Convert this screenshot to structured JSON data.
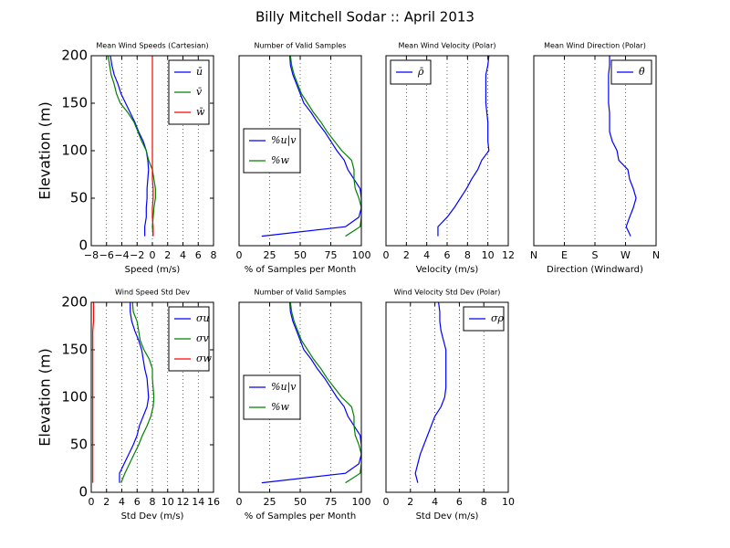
{
  "title": "Billy Mitchell Sodar :: April 2013",
  "chart_data": [
    {
      "type": "line",
      "title": "Mean Wind Speeds (Cartesian)",
      "xlabel": "Speed (m/s)",
      "ylabel": "Elevation (m)",
      "xlim": [
        -8,
        8
      ],
      "xticks": [
        {
          "value": -8,
          "label": "−8"
        },
        {
          "value": -6,
          "label": "−6"
        },
        {
          "value": -4,
          "label": "−4"
        },
        {
          "value": -2,
          "label": "−2"
        },
        0,
        2,
        4,
        6,
        8
      ],
      "ylim": [
        0,
        200
      ],
      "yticks": [
        0,
        50,
        100,
        150,
        200
      ],
      "grid": true,
      "legend": "upper right",
      "y": [
        10,
        20,
        30,
        40,
        50,
        60,
        70,
        80,
        90,
        100,
        110,
        120,
        130,
        140,
        150,
        160,
        170,
        180,
        190,
        200
      ],
      "series": [
        {
          "name": "ū",
          "color": "#0000ff",
          "values": [
            -1.0,
            -1.0,
            -0.8,
            -0.8,
            -0.7,
            -0.7,
            -0.6,
            -0.5,
            -0.6,
            -0.8,
            -1.2,
            -1.8,
            -2.3,
            -2.9,
            -3.5,
            -4.1,
            -4.5,
            -5.0,
            -5.3,
            -5.5
          ]
        },
        {
          "name": "v̄",
          "color": "#008000",
          "values": [
            0.1,
            0,
            0.1,
            0.2,
            0.4,
            0.4,
            0.2,
            0,
            -0.5,
            -0.8,
            -1.4,
            -1.9,
            -2.4,
            -3.2,
            -4.2,
            -4.7,
            -5.0,
            -5.4,
            -5.6,
            -5.8
          ]
        },
        {
          "name": "w̄",
          "color": "#ff0000",
          "values": [
            0.1,
            0.1,
            0,
            0,
            0.1,
            0.1,
            0,
            0,
            0,
            0,
            0,
            0,
            0,
            0,
            0,
            0,
            0,
            0,
            0,
            0
          ]
        }
      ]
    },
    {
      "type": "line",
      "title": "Number of Valid Samples",
      "xlabel": "% of Samples per Month",
      "xlim": [
        0,
        100
      ],
      "xticks": [
        0,
        25,
        50,
        75,
        100
      ],
      "ylim": [
        0,
        200
      ],
      "grid": true,
      "legend": "center left",
      "y": [
        10,
        20,
        30,
        40,
        50,
        60,
        70,
        80,
        90,
        100,
        110,
        120,
        130,
        140,
        150,
        160,
        170,
        180,
        190,
        200
      ],
      "series": [
        {
          "name": "%u|v",
          "color": "#0000ff",
          "values": [
            18.5,
            87,
            98,
            100,
            100,
            99,
            94,
            89,
            86,
            80,
            75,
            70,
            64,
            59,
            53,
            50,
            47,
            44,
            42,
            41.5
          ]
        },
        {
          "name": "%w",
          "color": "#008000",
          "values": [
            87,
            99,
            100,
            100,
            98,
            95,
            94,
            94,
            92,
            84,
            78,
            72,
            67,
            61,
            56,
            51,
            48,
            45,
            43,
            42
          ]
        }
      ]
    },
    {
      "type": "line",
      "title": "Mean Wind Velocity (Polar)",
      "xlabel": "Velocity (m/s)",
      "xlim": [
        0,
        12
      ],
      "xticks": [
        0,
        2,
        4,
        6,
        8,
        10,
        12
      ],
      "ylim": [
        0,
        200
      ],
      "grid": true,
      "legend": "upper left",
      "y": [
        10,
        20,
        30,
        40,
        50,
        60,
        70,
        80,
        90,
        100,
        110,
        120,
        130,
        140,
        150,
        160,
        170,
        180,
        190,
        200
      ],
      "series": [
        {
          "name": "ρ̄",
          "color": "#0000ff",
          "values": [
            5.1,
            5.1,
            6.0,
            6.7,
            7.3,
            7.9,
            8.4,
            9.0,
            9.4,
            10.1,
            10.0,
            10.0,
            10.0,
            9.9,
            9.8,
            9.8,
            9.8,
            9.8,
            10.0,
            10.1
          ]
        }
      ]
    },
    {
      "type": "line",
      "title": "Mean Wind Direction (Polar)",
      "xlabel": "Direction (Windward)",
      "xlim": [
        0,
        360
      ],
      "xticks": [
        {
          "value": 0,
          "label": "N"
        },
        {
          "value": 90,
          "label": "E"
        },
        {
          "value": 180,
          "label": "S"
        },
        {
          "value": 270,
          "label": "W"
        },
        {
          "value": 360,
          "label": "N"
        }
      ],
      "ylim": [
        0,
        200
      ],
      "grid": true,
      "legend": "upper right",
      "y": [
        10,
        20,
        30,
        40,
        50,
        60,
        70,
        80,
        90,
        100,
        110,
        120,
        130,
        140,
        150,
        160,
        170,
        180,
        190,
        200
      ],
      "series": [
        {
          "name": "θ̄",
          "color": "#0000ff",
          "values": [
            285,
            272,
            282,
            293,
            301,
            293,
            282,
            277,
            250,
            245,
            231,
            223,
            223,
            223,
            220,
            220,
            220,
            220,
            223,
            223
          ]
        }
      ]
    },
    {
      "type": "line",
      "title": "Wind Speed Std Dev",
      "xlabel": "Std Dev (m/s)",
      "ylabel": "Elevation (m)",
      "xlim": [
        0,
        16
      ],
      "xticks": [
        0,
        2,
        4,
        6,
        8,
        10,
        12,
        14,
        16
      ],
      "ylim": [
        0,
        200
      ],
      "yticks": [
        0,
        50,
        100,
        150,
        200
      ],
      "grid": true,
      "legend": "upper right",
      "y": [
        10,
        20,
        30,
        40,
        50,
        60,
        70,
        80,
        90,
        100,
        110,
        120,
        130,
        140,
        150,
        160,
        170,
        180,
        190,
        200
      ],
      "series": [
        {
          "name": "σu",
          "color": "#0000ff",
          "values": [
            3.7,
            3.7,
            4.3,
            4.9,
            5.5,
            6.0,
            6.3,
            6.8,
            7.3,
            7.5,
            7.4,
            7.3,
            7.0,
            6.8,
            6.6,
            6.2,
            5.7,
            5.3,
            5.1,
            5.1
          ]
        },
        {
          "name": "σv",
          "color": "#008000",
          "values": [
            3.9,
            4.4,
            5.0,
            5.6,
            6.2,
            6.7,
            7.3,
            7.8,
            8.1,
            8.2,
            8.1,
            8.0,
            8.0,
            7.6,
            6.9,
            6.4,
            6.2,
            6.0,
            5.5,
            5.4
          ]
        },
        {
          "name": "σw",
          "color": "#ff0000",
          "values": [
            0.2,
            0.2,
            0.2,
            0.2,
            0.2,
            0.2,
            0.2,
            0.2,
            0.2,
            0.2,
            0.2,
            0.2,
            0.2,
            0.2,
            0.2,
            0.2,
            0.2,
            0.3,
            0.3,
            0.3
          ]
        }
      ]
    },
    {
      "type": "line",
      "title": "Number of Valid Samples",
      "xlabel": "% of Samples per Month",
      "xlim": [
        0,
        100
      ],
      "xticks": [
        0,
        25,
        50,
        75,
        100
      ],
      "ylim": [
        0,
        200
      ],
      "grid": true,
      "legend": "center left",
      "y": [
        10,
        20,
        30,
        40,
        50,
        60,
        70,
        80,
        90,
        100,
        110,
        120,
        130,
        140,
        150,
        160,
        170,
        180,
        190,
        200
      ],
      "series": [
        {
          "name": "%u|v",
          "color": "#0000ff",
          "values": [
            18.5,
            87,
            98,
            100,
            100,
            99,
            94,
            89,
            86,
            80,
            75,
            70,
            64,
            59,
            53,
            50,
            47,
            44,
            42,
            41.5
          ]
        },
        {
          "name": "%w",
          "color": "#008000",
          "values": [
            87,
            99,
            100,
            100,
            98,
            95,
            94,
            94,
            92,
            84,
            78,
            72,
            67,
            61,
            56,
            51,
            48,
            45,
            43,
            42
          ]
        }
      ]
    },
    {
      "type": "line",
      "title": "Wind Velocity Std Dev (Polar)",
      "xlabel": "Std Dev (m/s)",
      "xlim": [
        0,
        10
      ],
      "xticks": [
        0,
        2,
        4,
        6,
        8,
        10
      ],
      "ylim": [
        0,
        200
      ],
      "grid": true,
      "legend": "upper right",
      "y": [
        10,
        20,
        30,
        40,
        50,
        60,
        70,
        80,
        90,
        100,
        110,
        120,
        130,
        140,
        150,
        160,
        170,
        180,
        190,
        200
      ],
      "series": [
        {
          "name": "σρ",
          "color": "#0000ff",
          "values": [
            2.6,
            2.4,
            2.6,
            2.8,
            3.1,
            3.4,
            3.7,
            4.0,
            4.5,
            4.8,
            4.9,
            4.9,
            4.9,
            4.9,
            4.9,
            4.7,
            4.5,
            4.4,
            4.4,
            4.3
          ]
        }
      ]
    }
  ]
}
